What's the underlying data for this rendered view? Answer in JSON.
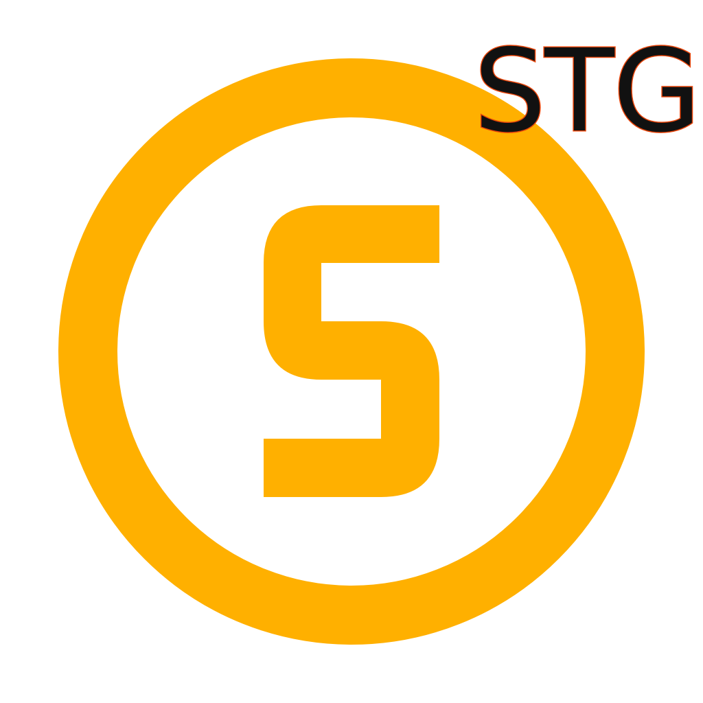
{
  "logo": {
    "label": "STG",
    "accent_color": "#FFB000",
    "label_fill": "#111111",
    "label_outline": "#E8450A",
    "icon": "s-coin-icon"
  }
}
